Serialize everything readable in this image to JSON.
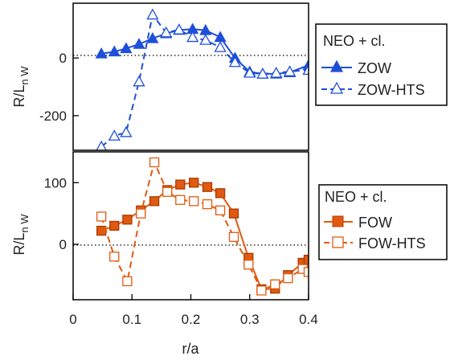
{
  "chart_data": [
    {
      "type": "line",
      "xlabel": "",
      "ylabel": "R/L",
      "ylabel_sub": "n W",
      "xlim": [
        0,
        0.4
      ],
      "ylim": [
        -320,
        190
      ],
      "yticks": [
        {
          "value": 0,
          "label": "0"
        },
        {
          "value": -200,
          "label": "-200"
        }
      ],
      "zero_line": "dotted",
      "legend": {
        "title": "NEO + cl.",
        "placement": "right"
      },
      "series": [
        {
          "name": "ZOW",
          "color": "#1f4fd8",
          "marker": "triangle-filled",
          "line": "solid",
          "x": [
            0.048,
            0.07,
            0.09,
            0.112,
            0.135,
            0.158,
            0.18,
            0.203,
            0.225,
            0.25,
            0.275,
            0.3,
            0.322,
            0.345,
            0.368,
            0.4
          ],
          "y": [
            15,
            22,
            33,
            48,
            68,
            85,
            97,
            100,
            96,
            72,
            0,
            -48,
            -55,
            -55,
            -50,
            -25
          ]
        },
        {
          "name": "ZOW-HTS",
          "color": "#1f4fd8",
          "marker": "triangle-open",
          "line": "dashed",
          "x": [
            0.048,
            0.07,
            0.09,
            0.112,
            0.135,
            0.158,
            0.18,
            0.203,
            0.225,
            0.25,
            0.275,
            0.3,
            0.322,
            0.345,
            0.368,
            0.4
          ],
          "y": [
            -308,
            -270,
            -258,
            -82,
            150,
            88,
            98,
            72,
            62,
            37,
            -15,
            -52,
            -55,
            -52,
            -47,
            -42
          ]
        }
      ]
    },
    {
      "type": "line",
      "xlabel": "r/a",
      "ylabel": "R/L",
      "ylabel_sub": "n W",
      "xlim": [
        0,
        0.4
      ],
      "ylim": [
        -90,
        150
      ],
      "xticks": [
        {
          "value": 0,
          "label": "0"
        },
        {
          "value": 0.1,
          "label": "0.1"
        },
        {
          "value": 0.2,
          "label": "0.2"
        },
        {
          "value": 0.3,
          "label": "0.3"
        },
        {
          "value": 0.4,
          "label": "0.4"
        }
      ],
      "yticks": [
        {
          "value": 100,
          "label": "100"
        },
        {
          "value": 0,
          "label": "0"
        }
      ],
      "zero_line": "dotted",
      "legend": {
        "title": "NEO + cl.",
        "placement": "right"
      },
      "series": [
        {
          "name": "FOW",
          "color": "#e05a10",
          "marker": "square-filled",
          "line": "solid",
          "x": [
            0.048,
            0.07,
            0.092,
            0.115,
            0.138,
            0.16,
            0.182,
            0.205,
            0.228,
            0.25,
            0.273,
            0.298,
            0.32,
            0.343,
            0.365,
            0.39,
            0.4
          ],
          "y": [
            22,
            30,
            40,
            55,
            70,
            88,
            97,
            100,
            93,
            83,
            50,
            -22,
            -73,
            -72,
            -50,
            -30,
            -25
          ]
        },
        {
          "name": "FOW-HTS",
          "color": "#e05a10",
          "marker": "square-open",
          "line": "dashed",
          "x": [
            0.048,
            0.07,
            0.092,
            0.115,
            0.138,
            0.16,
            0.182,
            0.205,
            0.228,
            0.25,
            0.273,
            0.298,
            0.32,
            0.343,
            0.365,
            0.39,
            0.4
          ],
          "y": [
            45,
            -20,
            -60,
            50,
            133,
            85,
            72,
            70,
            65,
            55,
            12,
            -33,
            -75,
            -65,
            -55,
            -40,
            -45
          ]
        }
      ]
    }
  ]
}
